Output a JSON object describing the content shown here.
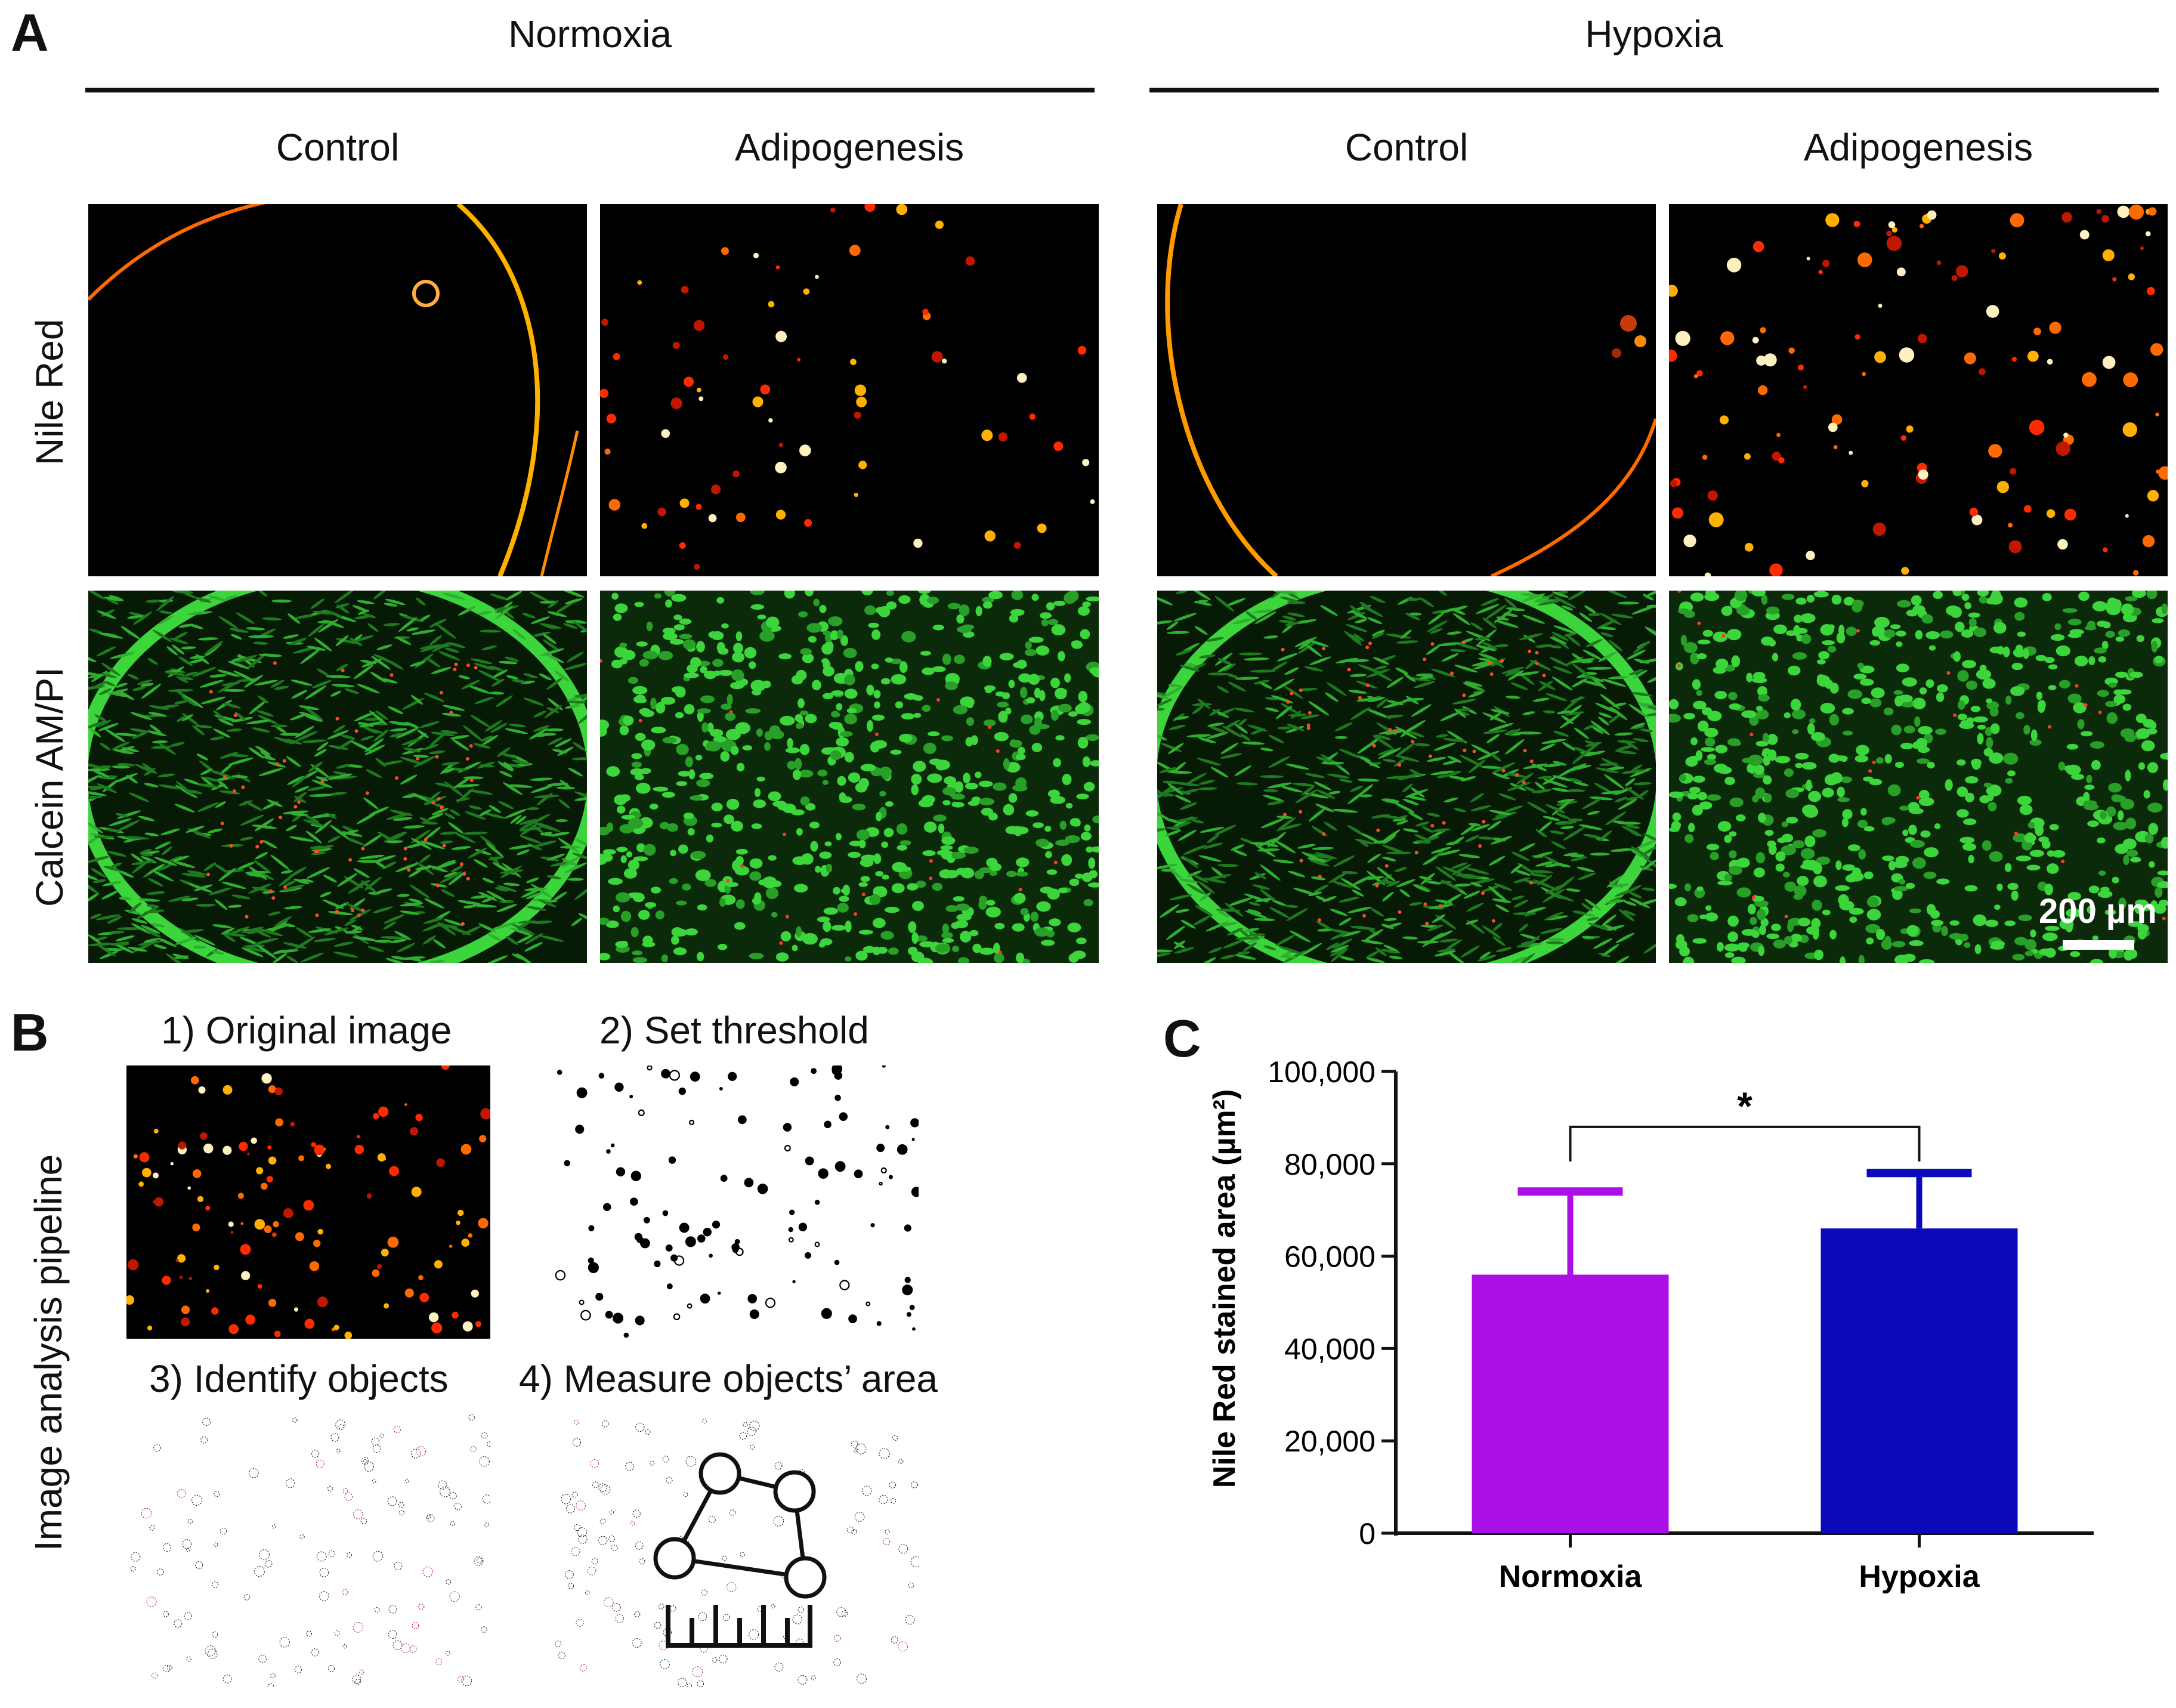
{
  "panel_a": {
    "letter": "A",
    "groups": [
      "Normoxia",
      "Hypoxia"
    ],
    "conditions": [
      "Control",
      "Adipogenesis",
      "Control",
      "Adipogenesis"
    ],
    "row_labels": [
      "Nile Red",
      "Calcein AM/PI"
    ],
    "scale_bar": "200 µm"
  },
  "panel_b": {
    "letter": "B",
    "side_label": "Image analysis pipeline",
    "steps": [
      "1) Original image",
      "2) Set threshold",
      "3) Identify objects",
      "4) Measure objects’ area"
    ]
  },
  "panel_c": {
    "letter": "C",
    "significance": "*"
  },
  "chart_data": {
    "type": "bar",
    "categories": [
      "Normoxia",
      "Hypoxia"
    ],
    "values": [
      56000,
      66000
    ],
    "errors": [
      18000,
      12000
    ],
    "colors": [
      "#aa10e6",
      "#0a0ab8"
    ],
    "ylabel": "Nile Red stained area (µm²)",
    "ylim": [
      0,
      100000
    ],
    "yticks": [
      0,
      20000,
      40000,
      60000,
      80000,
      100000
    ],
    "ytick_labels": [
      "0",
      "20,000",
      "40,000",
      "60,000",
      "80,000",
      "100,000"
    ],
    "significance_label": "*"
  }
}
